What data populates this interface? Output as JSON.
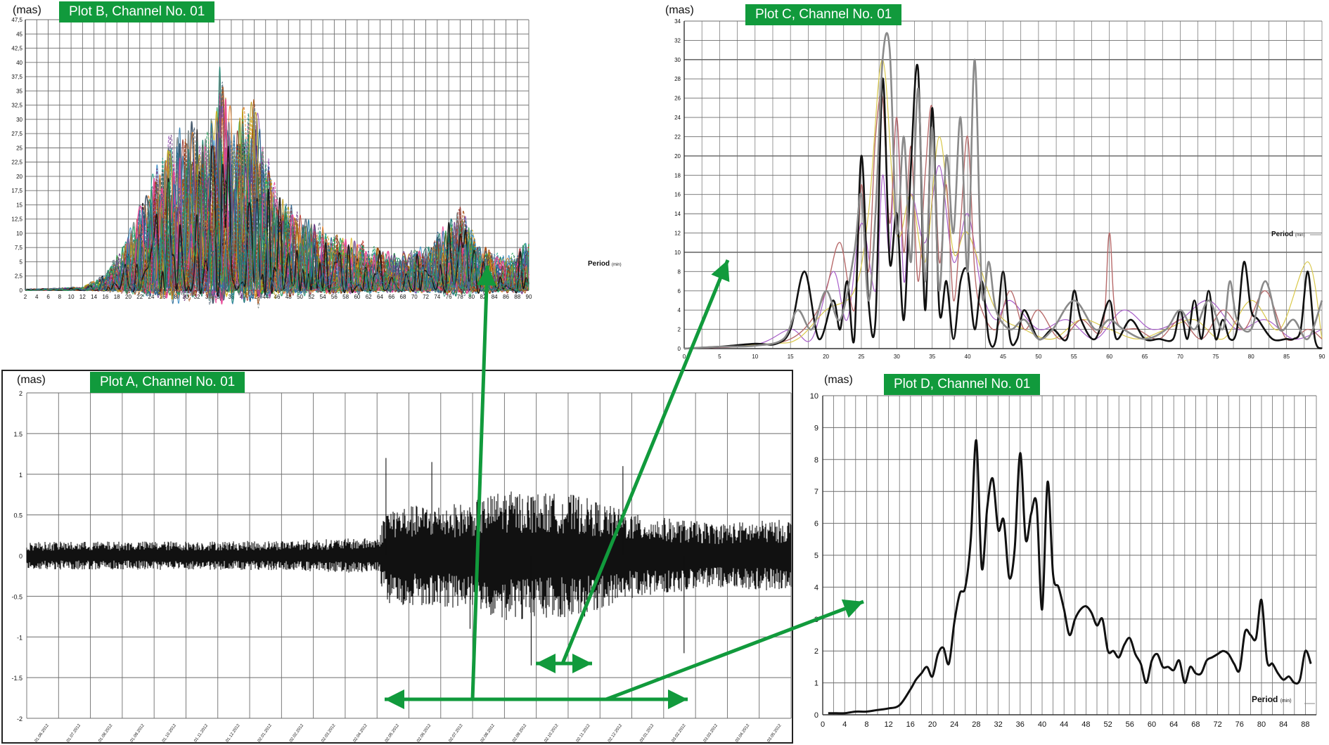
{
  "figure": {
    "colors": {
      "badge": "#119a3c",
      "arrow": "#119a3c",
      "grid": "#6d6d6d",
      "trace": "#111111"
    },
    "arrow_labels": []
  },
  "chart_data": [
    {
      "id": "A",
      "type": "line",
      "title": "Plot A, Channel No. 01",
      "ylabel": "(mas)",
      "xlabel": "",
      "ylim": [
        -2,
        2
      ],
      "yticks": [
        "2",
        "1.5",
        "1",
        "0.5",
        "0",
        "-0.5",
        "-1",
        "-1.5",
        "-2"
      ],
      "ytick_values": [
        2,
        1.5,
        1,
        0.5,
        0,
        -0.5,
        -1,
        -1.5,
        -2
      ],
      "xticks": [
        "01.06.2012",
        "01.07.2012",
        "01.08.2012",
        "01.09.2012",
        "01.10.2012",
        "01.11.2012",
        "01.12.2012",
        "02.01.2012",
        "02.02.2012",
        "02.03.2012",
        "02.04.2012",
        "02.05.2012",
        "02.06.2012",
        "02.07.2012",
        "02.08.2012",
        "02.09.2012",
        "02.10.2012",
        "02.11.2012",
        "02.12.2012",
        "03.01.2012",
        "03.02.2012",
        "03.03.2012",
        "03.04.2012",
        "03.05.2012"
      ],
      "envelope": {
        "breakpoints": [
          0,
          0.3,
          0.46,
          0.47,
          0.58,
          0.62,
          0.72,
          0.8,
          0.9,
          1.0
        ],
        "amplitude": [
          0.17,
          0.18,
          0.22,
          0.6,
          0.65,
          0.8,
          0.75,
          0.5,
          0.4,
          0.45
        ],
        "peaks": [
          1.2,
          1.15,
          -0.9,
          -1.35,
          -0.75,
          1.1,
          -1.2
        ]
      },
      "grid": true
    },
    {
      "id": "B",
      "type": "line",
      "title": "Plot B, Channel No. 01",
      "ylabel": "(mas)",
      "legend": "Period",
      "legend_unit": "(min)",
      "xlim": [
        2,
        90
      ],
      "ylim": [
        0,
        47.5
      ],
      "xticks": [
        "2",
        "4",
        "6",
        "8",
        "10",
        "12",
        "14",
        "16",
        "18",
        "20",
        "22",
        "24",
        "26",
        "28",
        "30",
        "32",
        "34",
        "36",
        "38",
        "40",
        "42",
        "44",
        "46",
        "48",
        "50",
        "52",
        "54",
        "56",
        "58",
        "60",
        "62",
        "64",
        "66",
        "68",
        "70",
        "72",
        "74",
        "76",
        "78",
        "80",
        "82",
        "84",
        "86",
        "88",
        "90"
      ],
      "yticks": [
        "47,5",
        "45",
        "42,5",
        "40",
        "37,5",
        "35",
        "32,5",
        "30",
        "27,5",
        "25",
        "22,5",
        "20",
        "17,5",
        "15",
        "12,5",
        "10",
        "7,5",
        "5",
        "2,5",
        "0"
      ],
      "ytick_values": [
        47.5,
        45,
        42.5,
        40,
        37.5,
        35,
        32.5,
        30,
        27.5,
        25,
        22.5,
        20,
        17.5,
        15,
        12.5,
        10,
        7.5,
        5,
        2.5,
        0
      ],
      "series_count": 60,
      "envelope": {
        "x": [
          2,
          12,
          16,
          20,
          24,
          28,
          30,
          34,
          36,
          38,
          42,
          46,
          50,
          56,
          60,
          66,
          72,
          78,
          82,
          86,
          90
        ],
        "y": [
          0.2,
          0.6,
          3,
          10,
          20,
          30,
          31,
          28,
          42,
          30,
          36,
          18,
          14,
          10,
          9,
          7,
          8,
          15,
          8,
          6,
          9
        ]
      },
      "grid": true
    },
    {
      "id": "C",
      "type": "line",
      "title": "Plot C, Channel No. 01",
      "ylabel": "(mas)",
      "legend": "Period",
      "legend_unit": "(min)",
      "xlim": [
        0,
        90
      ],
      "ylim": [
        0,
        34
      ],
      "xticks": [
        "0",
        "5",
        "10",
        "15",
        "20",
        "25",
        "30",
        "35",
        "40",
        "45",
        "50",
        "55",
        "60",
        "65",
        "70",
        "75",
        "80",
        "85",
        "90"
      ],
      "xtick_values": [
        0,
        5,
        10,
        15,
        20,
        25,
        30,
        35,
        40,
        45,
        50,
        55,
        60,
        65,
        70,
        75,
        80,
        85,
        90
      ],
      "yticks": [
        "34",
        "32",
        "30",
        "28",
        "26",
        "24",
        "22",
        "20",
        "18",
        "16",
        "14",
        "12",
        "10",
        "8",
        "6",
        "4",
        "2",
        "0"
      ],
      "ytick_values": [
        34,
        32,
        30,
        28,
        26,
        24,
        22,
        20,
        18,
        16,
        14,
        12,
        10,
        8,
        6,
        4,
        2,
        0
      ],
      "series": [
        {
          "x": [
            0,
            5,
            10,
            13,
            15,
            17,
            19,
            21,
            22,
            23,
            24,
            25,
            26,
            27,
            28,
            29,
            30,
            31,
            32,
            33,
            34,
            35,
            36,
            37,
            38,
            39,
            40,
            41,
            42,
            43,
            44,
            45,
            46,
            47,
            48,
            50,
            52,
            54,
            55,
            56,
            58,
            60,
            61,
            63,
            65,
            67,
            69,
            70,
            71,
            72,
            73,
            74,
            75,
            76,
            77,
            78,
            79,
            80,
            81,
            83,
            85,
            86,
            87,
            88,
            89,
            90
          ],
          "y": [
            0,
            0.2,
            0.5,
            0.5,
            2,
            8,
            1,
            5,
            2,
            7,
            1,
            20,
            5,
            3,
            28,
            9,
            14,
            3,
            19,
            29,
            4,
            25,
            4,
            7,
            1,
            7,
            8,
            2,
            7,
            1,
            1,
            8,
            1,
            1,
            4,
            1,
            2,
            1,
            6,
            3,
            1,
            5,
            1,
            3,
            1,
            1,
            1,
            4,
            1,
            5,
            1,
            6,
            1,
            3,
            1,
            2,
            9,
            4,
            3,
            1,
            1,
            1,
            2,
            8,
            1,
            0
          ],
          "color": "#111111",
          "width": 2.6
        },
        {
          "x": [
            0,
            5,
            10,
            14,
            16,
            18,
            20,
            22,
            24,
            25,
            26,
            27,
            28,
            29,
            30,
            31,
            32,
            33,
            34,
            35,
            36,
            37,
            38,
            39,
            40,
            41,
            42,
            43,
            44,
            46,
            48,
            50,
            52,
            55,
            58,
            60,
            62,
            65,
            68,
            70,
            72,
            74,
            76,
            77,
            78,
            80,
            82,
            84,
            86,
            88,
            90
          ],
          "y": [
            0,
            0.2,
            0.3,
            1,
            4,
            2,
            6,
            3,
            10,
            16,
            5,
            14,
            30,
            31,
            12,
            22,
            9,
            27,
            7,
            23,
            6,
            20,
            12,
            24,
            8,
            30,
            6,
            9,
            4,
            2,
            3,
            1,
            2,
            5,
            2,
            3,
            2,
            1,
            2,
            4,
            2,
            5,
            2,
            7,
            3,
            2,
            7,
            2,
            3,
            1,
            5
          ],
          "color": "#8a8a8a",
          "width": 2.6
        },
        {
          "x": [
            0,
            10,
            15,
            18,
            20,
            22,
            24,
            25,
            26,
            27,
            28,
            29,
            30,
            31,
            32,
            33,
            34,
            35,
            36,
            37,
            38,
            39,
            40,
            41,
            42,
            44,
            46,
            48,
            50,
            53,
            56,
            59,
            60,
            61,
            64,
            67,
            70,
            73,
            76,
            79,
            82,
            85,
            88,
            90
          ],
          "y": [
            0,
            0.3,
            1,
            3,
            6,
            11,
            4,
            17,
            8,
            22,
            26,
            13,
            24,
            10,
            21,
            7,
            18,
            25,
            9,
            17,
            5,
            13,
            22,
            8,
            4,
            2,
            6,
            2,
            4,
            1,
            3,
            2,
            12,
            3,
            2,
            1,
            3,
            1,
            4,
            2,
            6,
            1,
            2,
            1
          ],
          "color": "#b86b6b",
          "width": 1.4
        },
        {
          "x": [
            0,
            10,
            15,
            18,
            21,
            23,
            25,
            27,
            28,
            29,
            30,
            31,
            32,
            34,
            36,
            38,
            40,
            42,
            44,
            46,
            50,
            54,
            58,
            62,
            66,
            70,
            74,
            78,
            82,
            86,
            90
          ],
          "y": [
            0,
            0.4,
            2,
            1,
            8,
            3,
            13,
            6,
            18,
            10,
            24,
            7,
            16,
            11,
            19,
            9,
            14,
            6,
            3,
            5,
            2,
            3,
            1,
            4,
            2,
            3,
            5,
            2,
            3,
            1,
            2
          ],
          "color": "#a85ec9",
          "width": 1.2
        },
        {
          "x": [
            0,
            12,
            16,
            20,
            24,
            26,
            28,
            30,
            32,
            34,
            36,
            38,
            40,
            44,
            48,
            52,
            56,
            60,
            64,
            68,
            72,
            76,
            80,
            84,
            88,
            90
          ],
          "y": [
            0,
            0.5,
            1,
            4,
            6,
            14,
            30,
            12,
            16,
            9,
            22,
            10,
            12,
            4,
            2,
            1,
            3,
            2,
            1,
            2,
            3,
            1,
            5,
            2,
            9,
            1
          ],
          "color": "#d9c84a",
          "width": 1.2
        }
      ],
      "grid": true
    },
    {
      "id": "D",
      "type": "line",
      "title": "Plot D, Channel No. 01",
      "ylabel": "(mas)",
      "legend": "Period",
      "legend_unit": "(min)",
      "xlim": [
        0,
        90
      ],
      "ylim": [
        0,
        10
      ],
      "xticks": [
        "0",
        "4",
        "8",
        "12",
        "16",
        "20",
        "24",
        "28",
        "32",
        "36",
        "40",
        "44",
        "48",
        "52",
        "56",
        "60",
        "64",
        "68",
        "72",
        "76",
        "80",
        "84",
        "88"
      ],
      "xtick_values": [
        0,
        4,
        8,
        12,
        16,
        20,
        24,
        28,
        32,
        36,
        40,
        44,
        48,
        52,
        56,
        60,
        64,
        68,
        72,
        76,
        80,
        84,
        88
      ],
      "yticks": [
        "10",
        "9",
        "8",
        "7",
        "6",
        "5",
        "4",
        "3",
        "2",
        "1",
        "0"
      ],
      "ytick_values": [
        10,
        9,
        8,
        7,
        6,
        5,
        4,
        3,
        2,
        1,
        0
      ],
      "series": [
        {
          "x": [
            1,
            2,
            4,
            6,
            8,
            10,
            12,
            14,
            16,
            17,
            18,
            19,
            20,
            21,
            22,
            23,
            24,
            25,
            26,
            27,
            28,
            29,
            30,
            31,
            32,
            33,
            34,
            35,
            36,
            37,
            38,
            39,
            40,
            41,
            42,
            43,
            44,
            45,
            46,
            47,
            48,
            49,
            50,
            51,
            52,
            53,
            54,
            55,
            56,
            57,
            58,
            59,
            60,
            61,
            62,
            63,
            64,
            65,
            66,
            67,
            68,
            69,
            70,
            71,
            72,
            73,
            74,
            75,
            76,
            77,
            78,
            79,
            80,
            81,
            82,
            83,
            84,
            85,
            86,
            87,
            88,
            89
          ],
          "y": [
            0.05,
            0.05,
            0.05,
            0.1,
            0.1,
            0.15,
            0.2,
            0.3,
            0.8,
            1.1,
            1.3,
            1.5,
            1.2,
            1.9,
            2.1,
            1.6,
            2.9,
            3.8,
            4.0,
            5.5,
            8.6,
            4.6,
            6.5,
            7.4,
            5.8,
            6.1,
            4.3,
            5.2,
            8.2,
            5.5,
            6.3,
            6.6,
            3.3,
            7.3,
            4.4,
            4.0,
            3.3,
            2.5,
            3.0,
            3.3,
            3.4,
            3.2,
            2.8,
            3.0,
            2.0,
            2.0,
            1.8,
            2.2,
            2.4,
            1.9,
            1.6,
            1.0,
            1.7,
            1.9,
            1.5,
            1.5,
            1.4,
            1.7,
            1.0,
            1.5,
            1.3,
            1.3,
            1.7,
            1.8,
            1.9,
            2.0,
            1.9,
            1.6,
            1.4,
            2.6,
            2.5,
            2.4,
            3.6,
            1.7,
            1.6,
            1.3,
            1.1,
            1.2,
            1.0,
            1.1,
            2.0,
            1.6
          ],
          "color": "#111111",
          "width": 3
        }
      ],
      "grid": true
    }
  ]
}
